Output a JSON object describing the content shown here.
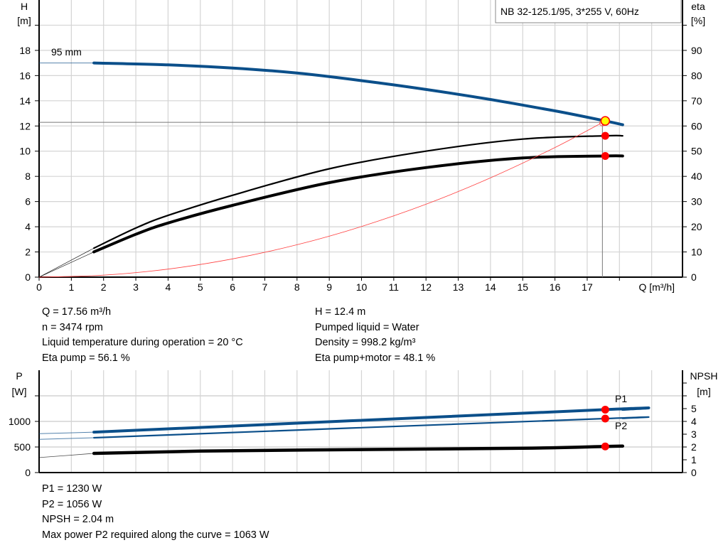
{
  "title": "NB 32-125.1/95, 3*255 V, 60Hz",
  "colors": {
    "head": "#0b4f8a",
    "power": "#0b4f8a",
    "eta": "#000000",
    "system": "#ff4040",
    "point": "#ff0000",
    "duty_point_fill": "#ffff00",
    "grid": "#d4d4d4"
  },
  "chart_data": [
    {
      "type": "line",
      "name": "head-efficiency",
      "xlabel": "Q [m³/h]",
      "ylabel_left": [
        "H",
        "[m]"
      ],
      "ylabel_right": [
        "eta",
        "[%]"
      ],
      "xlim": [
        0,
        20
      ],
      "ylim_left": [
        0,
        22
      ],
      "ylim_right": [
        0,
        110
      ],
      "x_ticks": [
        "0",
        "1",
        "2",
        "3",
        "4",
        "5",
        "6",
        "7",
        "8",
        "9",
        "10",
        "11",
        "12",
        "13",
        "14",
        "15",
        "16",
        "17"
      ],
      "y_ticks_left": [
        "0",
        "2",
        "4",
        "6",
        "8",
        "10",
        "12",
        "14",
        "16",
        "18"
      ],
      "y_ticks_right": [
        "0",
        "10",
        "20",
        "30",
        "40",
        "50",
        "60",
        "70",
        "80",
        "90"
      ],
      "grid": true,
      "curve_label": "95 mm",
      "series": [
        {
          "key": "H",
          "axis": "left",
          "x": [
            0,
            1.7,
            4,
            6,
            8,
            10,
            12,
            14,
            16,
            17.56,
            18.1
          ],
          "y": [
            17.0,
            17.0,
            16.85,
            16.6,
            16.2,
            15.6,
            14.9,
            14.1,
            13.2,
            12.4,
            12.1
          ]
        },
        {
          "key": "eta_pump",
          "axis": "right",
          "x": [
            1.7,
            3,
            4,
            6,
            9,
            12,
            15,
            17.56,
            18.1
          ],
          "y": [
            11.5,
            19.5,
            24.5,
            32.5,
            43,
            50,
            54.8,
            56.1,
            56.1
          ]
        },
        {
          "key": "eta_pump_motor",
          "axis": "right",
          "x": [
            1.7,
            3,
            4,
            6,
            9,
            12,
            15,
            17.56,
            18.1
          ],
          "y": [
            10,
            17,
            21.5,
            28.5,
            37.5,
            43.5,
            47.3,
            48.1,
            48.1
          ]
        },
        {
          "key": "system",
          "axis": "left",
          "x": [
            0,
            2,
            4,
            6,
            8,
            10,
            12,
            14,
            16,
            17.56
          ],
          "y": [
            0,
            0.16,
            0.64,
            1.45,
            2.57,
            4.02,
            5.79,
            7.88,
            10.29,
            12.4
          ]
        }
      ],
      "duty_point": {
        "Q": 17.56,
        "H": 12.4,
        "eta_pump": 56.1,
        "eta_pump_motor": 48.1
      }
    },
    {
      "type": "line",
      "name": "power-npsh",
      "ylabel_left": [
        "P",
        "[W]"
      ],
      "ylabel_right": [
        "NPSH",
        "[m]"
      ],
      "xlim": [
        0,
        20
      ],
      "ylim_left": [
        0,
        2000
      ],
      "ylim_right": [
        0,
        8
      ],
      "y_ticks_left": [
        "0",
        "500",
        "1000"
      ],
      "y_ticks_right": [
        "0",
        "1",
        "2",
        "3",
        "4",
        "5"
      ],
      "grid": true,
      "series": [
        {
          "key": "P1",
          "name": "P1",
          "axis": "left",
          "x": [
            0,
            1.7,
            17.56,
            18.1
          ],
          "y": [
            760,
            790,
            1230,
            1235
          ]
        },
        {
          "key": "P2",
          "name": "P2",
          "axis": "left",
          "x": [
            0,
            1.7,
            17.56,
            18.1
          ],
          "y": [
            650,
            680,
            1056,
            1060
          ]
        },
        {
          "key": "NPSH",
          "axis": "right",
          "x": [
            0,
            1.7,
            5,
            10,
            15,
            17.56,
            18.1
          ],
          "y": [
            1.17,
            1.5,
            1.68,
            1.8,
            1.9,
            2.04,
            2.07
          ]
        }
      ],
      "duty_point": {
        "Q": 17.56,
        "P1": 1230,
        "P2": 1056,
        "NPSH": 2.04
      }
    }
  ],
  "info_top_left": [
    "Q = 17.56 m³/h",
    "n = 3474 rpm",
    "Liquid temperature during operation = 20 °C",
    "Eta pump = 56.1 %"
  ],
  "info_top_right": [
    "H = 12.4 m",
    "Pumped liquid = Water",
    "Density = 998.2 kg/m³",
    "Eta pump+motor = 48.1 %"
  ],
  "info_bottom": [
    "P1 = 1230 W",
    "P2 = 1056 W",
    "NPSH = 2.04 m",
    "Max power P2 required along the curve = 1063 W"
  ]
}
